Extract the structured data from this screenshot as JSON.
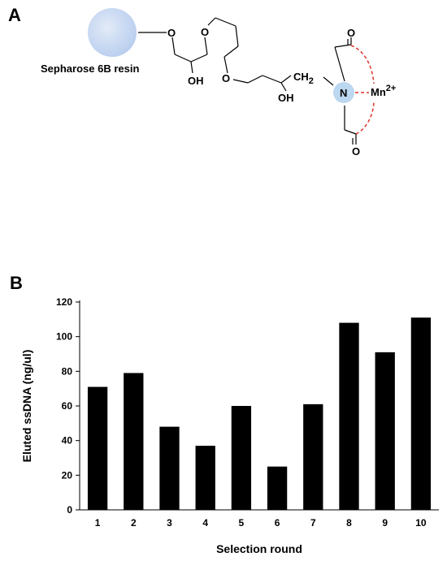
{
  "panel_a": {
    "letter": "A",
    "resin_label": "Sepharose 6B resin",
    "atoms": {
      "o1": "O",
      "o2": "O",
      "o3": "O",
      "oh1": "OH",
      "oh2": "OH",
      "ch2": "CH",
      "ch2_sub": "2",
      "n": "N",
      "mn": "Mn",
      "mn_charge": "2+",
      "o_top": "O",
      "o_bottom": "O"
    },
    "colors": {
      "resin": "#c9d9f2",
      "nitrogen": "#bcd7f0",
      "coordination": "#e0312b"
    }
  },
  "panel_b": {
    "letter": "B"
  },
  "chart_data": {
    "type": "bar",
    "categories": [
      "1",
      "2",
      "3",
      "4",
      "5",
      "6",
      "7",
      "8",
      "9",
      "10"
    ],
    "values": [
      71,
      79,
      48,
      37,
      60,
      25,
      61,
      108,
      91,
      111
    ],
    "xlabel": "Selection round",
    "ylabel": "Eluted ssDNA  (ng/ul)",
    "ylim": [
      0,
      120
    ],
    "yticks": [
      0,
      20,
      40,
      60,
      80,
      100,
      120
    ],
    "bar_color": "#000000",
    "grid": false
  }
}
